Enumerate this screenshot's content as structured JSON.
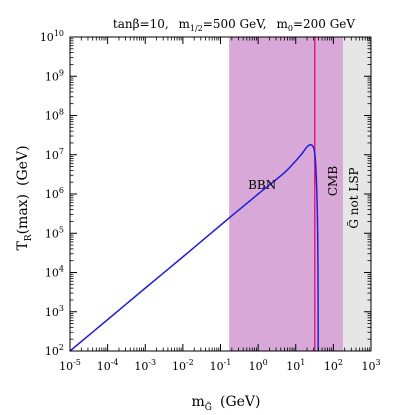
{
  "chart_data": {
    "type": "line",
    "title": "tanβ=10,  m1/2=500 GeV,  m0=200 GeV",
    "title_parts": {
      "tanbeta": "tanβ=10,",
      "m_half_base": "m",
      "m_half_sub": "1/2",
      "m_half_value": "=500 GeV,",
      "m0_base": "m",
      "m0_sub": "0",
      "m0_value": "=200 GeV"
    },
    "xlabel": {
      "base": "m",
      "sub": "G̃",
      "unit": "(GeV)"
    },
    "ylabel": {
      "base": "T",
      "sub": "R",
      "rest": "(max)",
      "unit": "(GeV)"
    },
    "x_scale": "log",
    "y_scale": "log",
    "xlim": [
      1e-05,
      1000
    ],
    "ylim": [
      100,
      10000000000
    ],
    "x_ticks": [
      {
        "base": "10",
        "exp": "-5"
      },
      {
        "base": "10",
        "exp": "-4"
      },
      {
        "base": "10",
        "exp": "-3"
      },
      {
        "base": "10",
        "exp": "-2"
      },
      {
        "base": "10",
        "exp": "-1"
      },
      {
        "base": "10",
        "exp": "0"
      },
      {
        "base": "10",
        "exp": "1"
      },
      {
        "base": "10",
        "exp": "2"
      },
      {
        "base": "10",
        "exp": "3"
      }
    ],
    "y_ticks": [
      {
        "base": "10",
        "exp": "2"
      },
      {
        "base": "10",
        "exp": "3"
      },
      {
        "base": "10",
        "exp": "4"
      },
      {
        "base": "10",
        "exp": "5"
      },
      {
        "base": "10",
        "exp": "6"
      },
      {
        "base": "10",
        "exp": "7"
      },
      {
        "base": "10",
        "exp": "8"
      },
      {
        "base": "10",
        "exp": "9"
      },
      {
        "base": "10",
        "exp": "10"
      }
    ],
    "grid": false,
    "regions": [
      {
        "label": "BBN",
        "x_range": [
          0.17,
          32
        ],
        "color": "#d8a8d8"
      },
      {
        "label": "CMB",
        "x_range": [
          32,
          180
        ],
        "color": "#d8a8d8"
      },
      {
        "label": "G̃ not LSP",
        "x_range": [
          180,
          1000
        ],
        "color": "#e6e6e6"
      }
    ],
    "boundary_line": {
      "x": 32,
      "color": "#e0207a"
    },
    "series": [
      {
        "color": "#1f1fd8",
        "points": [
          [
            1e-05,
            100
          ],
          [
            0.0001,
            630
          ],
          [
            0.001,
            4000
          ],
          [
            0.01,
            25000
          ],
          [
            0.1,
            160000
          ],
          [
            1,
            1000000
          ],
          [
            5,
            3500000
          ],
          [
            10,
            7000000
          ],
          [
            15,
            11000000
          ],
          [
            20,
            16000000
          ],
          [
            25,
            18000000
          ],
          [
            30,
            15000000
          ],
          [
            33,
            8000000
          ],
          [
            36,
            1500000
          ],
          [
            38,
            150000
          ],
          [
            39,
            10000
          ],
          [
            39.5,
            100
          ]
        ]
      }
    ]
  }
}
